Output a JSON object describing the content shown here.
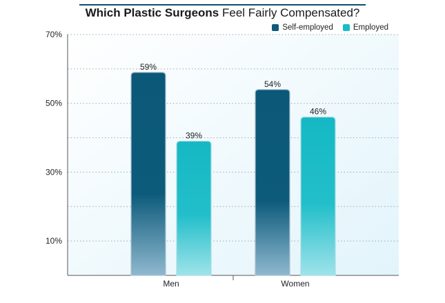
{
  "title": {
    "part1": "Which Plastic Surgeons",
    "part2": "Feel Fairly Compensated?"
  },
  "legend": [
    {
      "label": "Self-employed",
      "color": "#0e5a7d"
    },
    {
      "label": "Employed",
      "color": "#19bcc6"
    }
  ],
  "chart_data": {
    "type": "bar",
    "title": "Which Plastic Surgeons Feel Fairly Compensated?",
    "categories": [
      "Men",
      "Women"
    ],
    "series": [
      {
        "name": "Self-employed",
        "values": [
          59,
          54
        ],
        "labels": [
          "59%",
          "54%"
        ],
        "color": "#0e5a7d"
      },
      {
        "name": "Employed",
        "values": [
          39,
          46
        ],
        "labels": [
          "39%",
          "46%"
        ],
        "color": "#19bcc6"
      }
    ],
    "yticks": [
      10,
      30,
      50,
      70
    ],
    "ytick_labels": [
      "10%",
      "30%",
      "50%",
      "70%"
    ],
    "ylim": [
      0,
      70
    ],
    "grid": true,
    "legend_position": "top-right"
  }
}
